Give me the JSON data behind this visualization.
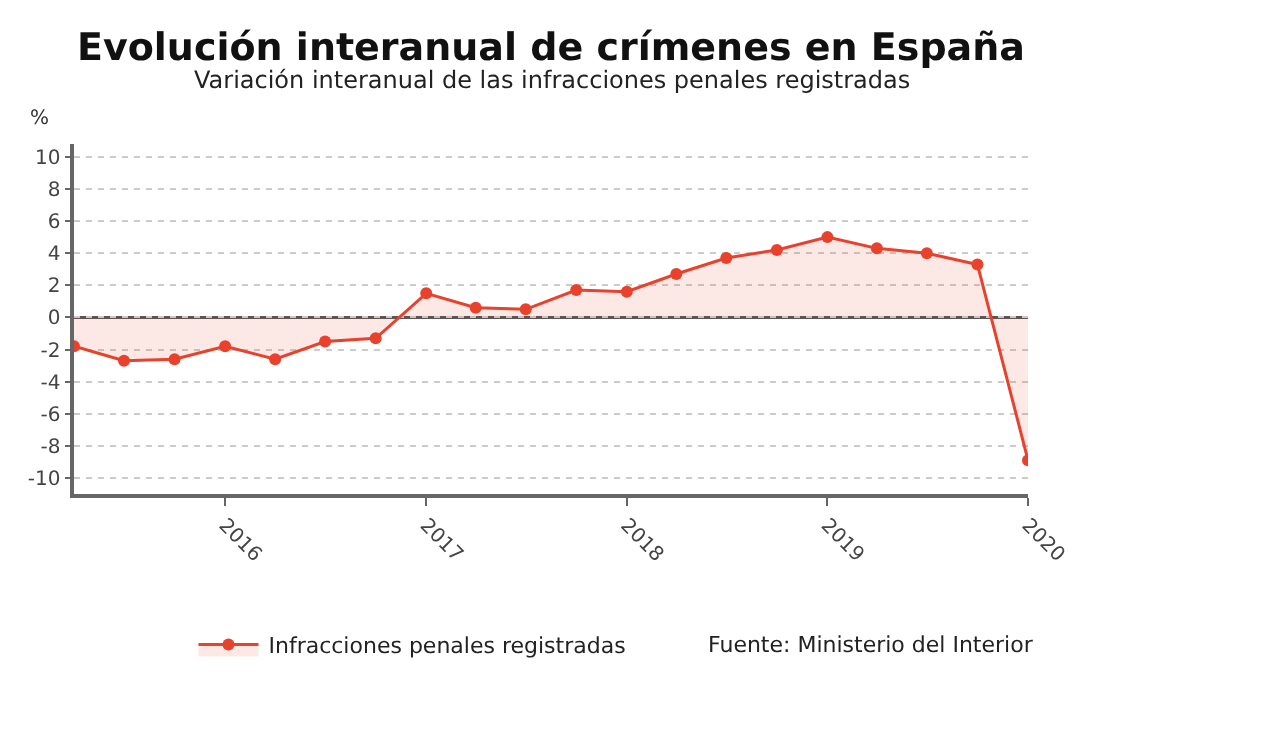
{
  "chart_data": {
    "type": "area",
    "title": "Evolución interanual de crímenes en España",
    "subtitle": "Variación interanual de las infracciones penales registradas",
    "ylabel": "%",
    "x": [
      "2015-04",
      "2015-07",
      "2015-10",
      "2016-01",
      "2016-04",
      "2016-07",
      "2016-10",
      "2017-01",
      "2017-04",
      "2017-07",
      "2017-10",
      "2018-01",
      "2018-04",
      "2018-07",
      "2018-10",
      "2019-01",
      "2019-04",
      "2019-07",
      "2019-10",
      "2020-01"
    ],
    "series": [
      {
        "name": "Infracciones penales registradas",
        "color": "#e8412c",
        "values": [
          -1.8,
          -2.7,
          -2.6,
          -1.8,
          -2.6,
          -1.5,
          -1.3,
          1.5,
          0.6,
          0.5,
          1.7,
          1.6,
          2.7,
          3.7,
          4.2,
          5.0,
          4.3,
          4.0,
          3.3,
          -8.9
        ]
      }
    ],
    "xlim": [
      "2015-04",
      "2020-01"
    ],
    "xticks": [
      {
        "value": "2016-01",
        "label": "2016"
      },
      {
        "value": "2017-01",
        "label": "2017"
      },
      {
        "value": "2018-01",
        "label": "2018"
      },
      {
        "value": "2019-01",
        "label": "2019"
      },
      {
        "value": "2020-01",
        "label": "2020"
      }
    ],
    "ylim": [
      -11,
      10.8
    ],
    "yticks": [
      -10,
      -8,
      -6,
      -4,
      -2,
      0,
      2,
      4,
      6,
      8,
      10
    ],
    "ref_lines": [
      {
        "axis": "y",
        "value": 0,
        "color": "#555555"
      }
    ],
    "annotations": [
      "Fuente: Ministerio del Interior"
    ],
    "grid": "y",
    "legend": "bottom",
    "marker": "circle",
    "line_style": "solid"
  }
}
